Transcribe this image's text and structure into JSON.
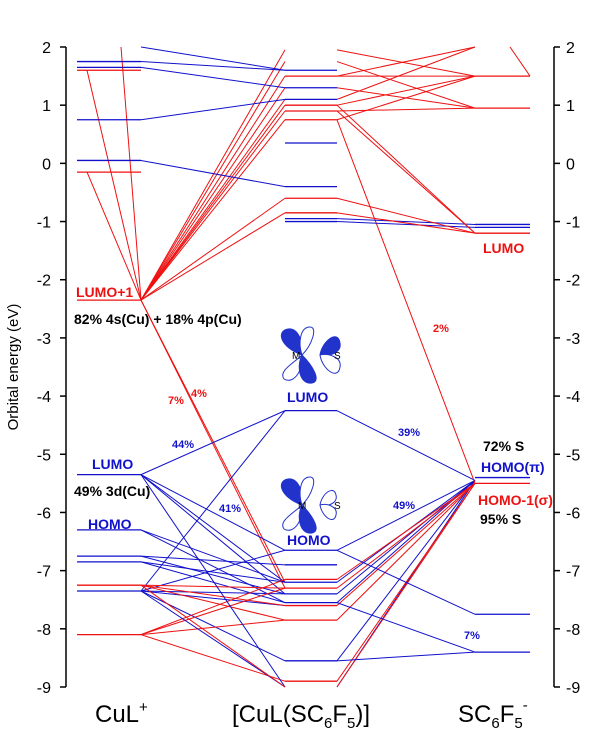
{
  "chart_data": {
    "type": "line",
    "title": "",
    "ylabel": "Orbital energy (eV)",
    "ylim": [
      -9,
      2
    ],
    "y_ticks": [
      2,
      1,
      0,
      -1,
      -2,
      -3,
      -4,
      -5,
      -6,
      -7,
      -8,
      -9
    ],
    "x_categories": [
      "CuL⁺",
      "[CuL(SC₆F₅)]",
      "SC₆F₅⁻"
    ],
    "x_category_labels": [
      {
        "main": "CuL",
        "sup": "+"
      },
      {
        "main": "[CuL(SC",
        "sub": "6",
        "mid": "F",
        "sub2": "5",
        "tail": ")]"
      },
      {
        "main": "SC",
        "sub": "6",
        "mid": "F",
        "sub2": "5",
        "sup": "-"
      }
    ],
    "colors": {
      "red": "#ee1111",
      "blue": "#1111cc",
      "text": "#000000"
    },
    "levels": {
      "CuL": [
        {
          "e": 1.75,
          "c": "blue"
        },
        {
          "e": 1.65,
          "c": "blue"
        },
        {
          "e": 1.6,
          "c": "red"
        },
        {
          "e": 0.75,
          "c": "blue"
        },
        {
          "e": 0.05,
          "c": "blue"
        },
        {
          "e": -0.15,
          "c": "red"
        },
        {
          "e": -2.35,
          "c": "red"
        },
        {
          "e": -5.35,
          "c": "blue"
        },
        {
          "e": -6.3,
          "c": "blue"
        },
        {
          "e": -6.75,
          "c": "blue"
        },
        {
          "e": -6.85,
          "c": "blue"
        },
        {
          "e": -7.25,
          "c": "red"
        },
        {
          "e": -7.35,
          "c": "blue"
        },
        {
          "e": -8.1,
          "c": "red"
        }
      ],
      "Complex": [
        {
          "e": 1.6,
          "c": "blue"
        },
        {
          "e": 1.5,
          "c": "red"
        },
        {
          "e": 1.3,
          "c": "blue"
        },
        {
          "e": 1.1,
          "c": "blue"
        },
        {
          "e": 1.0,
          "c": "red"
        },
        {
          "e": 0.9,
          "c": "red"
        },
        {
          "e": 0.75,
          "c": "red"
        },
        {
          "e": 0.35,
          "c": "blue"
        },
        {
          "e": -0.4,
          "c": "blue"
        },
        {
          "e": -0.6,
          "c": "red"
        },
        {
          "e": -0.85,
          "c": "red"
        },
        {
          "e": -0.95,
          "c": "blue"
        },
        {
          "e": -1.0,
          "c": "blue"
        },
        {
          "e": -4.25,
          "c": "blue"
        },
        {
          "e": -6.65,
          "c": "blue"
        },
        {
          "e": -6.9,
          "c": "blue"
        },
        {
          "e": -7.15,
          "c": "red"
        },
        {
          "e": -7.2,
          "c": "blue"
        },
        {
          "e": -7.3,
          "c": "red"
        },
        {
          "e": -7.4,
          "c": "blue"
        },
        {
          "e": -7.55,
          "c": "blue"
        },
        {
          "e": -7.6,
          "c": "red"
        },
        {
          "e": -7.85,
          "c": "red"
        },
        {
          "e": -8.55,
          "c": "blue"
        },
        {
          "e": -8.9,
          "c": "red"
        }
      ],
      "SC6F5": [
        {
          "e": 1.5,
          "c": "red"
        },
        {
          "e": 0.95,
          "c": "red"
        },
        {
          "e": -1.05,
          "c": "blue"
        },
        {
          "e": -1.1,
          "c": "blue"
        },
        {
          "e": -1.2,
          "c": "red"
        },
        {
          "e": -5.4,
          "c": "blue"
        },
        {
          "e": -5.5,
          "c": "red"
        },
        {
          "e": -7.75,
          "c": "blue"
        },
        {
          "e": -8.4,
          "c": "blue"
        }
      ]
    },
    "correlations": [
      {
        "from": "CuL",
        "e1": -2.35,
        "to": "Complex",
        "e2": 1.95,
        "c": "red"
      },
      {
        "from": "CuL",
        "e1": -2.35,
        "to": "Complex",
        "e2": 1.75,
        "c": "red"
      },
      {
        "from": "CuL",
        "e1": -2.35,
        "to": "Complex",
        "e2": 1.5,
        "c": "red"
      },
      {
        "from": "CuL",
        "e1": -2.35,
        "to": "Complex",
        "e2": 1.3,
        "c": "red"
      },
      {
        "from": "CuL",
        "e1": -2.35,
        "to": "Complex",
        "e2": 1.1,
        "c": "red"
      },
      {
        "from": "CuL",
        "e1": -2.35,
        "to": "Complex",
        "e2": 1.0,
        "c": "red"
      },
      {
        "from": "CuL",
        "e1": -2.35,
        "to": "Complex",
        "e2": 0.9,
        "c": "red"
      },
      {
        "from": "CuL",
        "e1": -2.35,
        "to": "Complex",
        "e2": 0.75,
        "c": "red"
      },
      {
        "from": "CuL",
        "e1": -2.35,
        "to": "Complex",
        "e2": -0.6,
        "c": "red"
      },
      {
        "from": "CuL",
        "e1": -2.35,
        "to": "Complex",
        "e2": -0.85,
        "c": "red"
      },
      {
        "from": "CuL",
        "e1": -2.35,
        "to": "Complex",
        "e2": -7.2,
        "c": "red"
      },
      {
        "from": "CuL",
        "e1": -2.35,
        "to": "Complex",
        "e2": -7.3,
        "c": "red"
      },
      {
        "from": "CuL",
        "e1": -2.35,
        "to": "CuL",
        "e2": 2.0,
        "c": "red",
        "fan": [
          1.6,
          -0.15
        ]
      },
      {
        "from": "CuL",
        "e1": 1.75,
        "to": "Complex",
        "e2": 1.6,
        "c": "blue"
      },
      {
        "from": "CuL",
        "e1": 1.65,
        "to": "Complex",
        "e2": 1.3,
        "c": "blue"
      },
      {
        "from": "CuL",
        "e1": 0.75,
        "to": "Complex",
        "e2": 1.1,
        "c": "blue"
      },
      {
        "from": "CuL",
        "e1": 0.05,
        "to": "Complex",
        "e2": -0.4,
        "c": "blue"
      },
      {
        "from": "CuL",
        "e1": 2.0,
        "to": "Complex",
        "e2": 1.6,
        "c": "blue"
      },
      {
        "from": "CuL",
        "e1": -5.35,
        "to": "Complex",
        "e2": -4.25,
        "c": "blue"
      },
      {
        "from": "CuL",
        "e1": -5.35,
        "to": "Complex",
        "e2": -6.65,
        "c": "blue"
      },
      {
        "from": "CuL",
        "e1": -5.35,
        "to": "Complex",
        "e2": -7.2,
        "c": "blue"
      },
      {
        "from": "CuL",
        "e1": -5.35,
        "to": "Complex",
        "e2": -7.4,
        "c": "blue"
      },
      {
        "from": "CuL",
        "e1": -6.3,
        "to": "Complex",
        "e2": -7.2,
        "c": "blue"
      },
      {
        "from": "CuL",
        "e1": -6.3,
        "to": "Complex",
        "e2": -7.55,
        "c": "blue"
      },
      {
        "from": "CuL",
        "e1": -6.75,
        "to": "Complex",
        "e2": -6.9,
        "c": "blue"
      },
      {
        "from": "CuL",
        "e1": -6.75,
        "to": "Complex",
        "e2": -7.4,
        "c": "blue"
      },
      {
        "from": "CuL",
        "e1": -6.85,
        "to": "Complex",
        "e2": -7.55,
        "c": "blue"
      },
      {
        "from": "CuL",
        "e1": -6.85,
        "to": "Complex",
        "e2": -7.2,
        "c": "blue"
      },
      {
        "from": "CuL",
        "e1": -7.35,
        "to": "Complex",
        "e2": -7.4,
        "c": "blue"
      },
      {
        "from": "CuL",
        "e1": -7.35,
        "to": "Complex",
        "e2": -7.6,
        "c": "blue"
      },
      {
        "from": "CuL",
        "e1": -7.35,
        "to": "Complex",
        "e2": -8.55,
        "c": "blue"
      },
      {
        "from": "CuL",
        "e1": -7.35,
        "to": "Complex",
        "e2": -4.25,
        "c": "blue"
      },
      {
        "from": "CuL",
        "e1": -7.35,
        "to": "Complex",
        "e2": -6.65,
        "c": "blue"
      },
      {
        "from": "CuL",
        "e1": -7.25,
        "to": "Complex",
        "e2": -7.3,
        "c": "red"
      },
      {
        "from": "CuL",
        "e1": -7.25,
        "to": "Complex",
        "e2": -7.6,
        "c": "red"
      },
      {
        "from": "CuL",
        "e1": -7.25,
        "to": "Complex",
        "e2": -7.85,
        "c": "red"
      },
      {
        "from": "CuL",
        "e1": -8.1,
        "to": "Complex",
        "e2": -7.3,
        "c": "red"
      },
      {
        "from": "CuL",
        "e1": -8.1,
        "to": "Complex",
        "e2": -7.85,
        "c": "red"
      },
      {
        "from": "CuL",
        "e1": -8.1,
        "to": "Complex",
        "e2": -8.9,
        "c": "red"
      },
      {
        "from": "CuL",
        "e1": -8.1,
        "to": "Complex",
        "e2": -7.15,
        "c": "red"
      },
      {
        "from": "CuL",
        "e1": -7.35,
        "to": "Complex",
        "e2": -9.0,
        "c": "blue"
      },
      {
        "from": "CuL",
        "e1": -5.35,
        "to": "Complex",
        "e2": -9.0,
        "c": "blue"
      },
      {
        "from": "CuL",
        "e1": -7.25,
        "to": "Complex",
        "e2": -9.0,
        "c": "red"
      },
      {
        "from": "SC6F5",
        "e1": -5.45,
        "to": "Complex",
        "e2": -4.25,
        "c": "blue"
      },
      {
        "from": "SC6F5",
        "e1": -5.45,
        "to": "Complex",
        "e2": -6.65,
        "c": "blue"
      },
      {
        "from": "SC6F5",
        "e1": -5.45,
        "to": "Complex",
        "e2": -7.2,
        "c": "blue"
      },
      {
        "from": "SC6F5",
        "e1": -5.45,
        "to": "Complex",
        "e2": -7.55,
        "c": "blue"
      },
      {
        "from": "SC6F5",
        "e1": -5.45,
        "to": "Complex",
        "e2": -7.4,
        "c": "blue"
      },
      {
        "from": "SC6F5",
        "e1": -5.45,
        "to": "Complex",
        "e2": -8.55,
        "c": "blue"
      },
      {
        "from": "SC6F5",
        "e1": -5.45,
        "to": "Complex",
        "e2": -9.0,
        "c": "blue"
      },
      {
        "from": "SC6F5",
        "e1": -5.5,
        "to": "Complex",
        "e2": 0.75,
        "c": "red"
      },
      {
        "from": "SC6F5",
        "e1": -5.5,
        "to": "Complex",
        "e2": -7.15,
        "c": "red"
      },
      {
        "from": "SC6F5",
        "e1": -5.5,
        "to": "Complex",
        "e2": -7.3,
        "c": "red"
      },
      {
        "from": "SC6F5",
        "e1": -5.5,
        "to": "Complex",
        "e2": -7.6,
        "c": "red"
      },
      {
        "from": "SC6F5",
        "e1": -5.5,
        "to": "Complex",
        "e2": -7.85,
        "c": "red"
      },
      {
        "from": "SC6F5",
        "e1": -5.5,
        "to": "Complex",
        "e2": -8.9,
        "c": "red"
      },
      {
        "from": "SC6F5",
        "e1": -5.5,
        "to": "Complex",
        "e2": -9.0,
        "c": "red"
      },
      {
        "from": "SC6F5",
        "e1": -7.75,
        "to": "Complex",
        "e2": -6.65,
        "c": "blue"
      },
      {
        "from": "SC6F5",
        "e1": -8.4,
        "to": "Complex",
        "e2": -8.55,
        "c": "blue"
      },
      {
        "from": "SC6F5",
        "e1": -8.4,
        "to": "Complex",
        "e2": -7.55,
        "c": "blue"
      },
      {
        "from": "SC6F5",
        "e1": -1.05,
        "to": "Complex",
        "e2": -0.95,
        "c": "blue"
      },
      {
        "from": "SC6F5",
        "e1": -1.1,
        "to": "Complex",
        "e2": -1.0,
        "c": "blue"
      },
      {
        "from": "SC6F5",
        "e1": -1.2,
        "to": "Complex",
        "e2": 0.9,
        "c": "red"
      },
      {
        "from": "SC6F5",
        "e1": -1.2,
        "to": "Complex",
        "e2": 1.0,
        "c": "red"
      },
      {
        "from": "SC6F5",
        "e1": -1.2,
        "to": "Complex",
        "e2": -0.6,
        "c": "red"
      },
      {
        "from": "SC6F5",
        "e1": -1.2,
        "to": "Complex",
        "e2": -0.85,
        "c": "red"
      },
      {
        "from": "SC6F5",
        "e1": 1.5,
        "to": "Complex",
        "e2": 1.5,
        "c": "red"
      },
      {
        "from": "SC6F5",
        "e1": 1.5,
        "to": "Complex",
        "e2": 1.0,
        "c": "red"
      },
      {
        "from": "SC6F5",
        "e1": 1.5,
        "to": "Complex",
        "e2": 0.75,
        "c": "red"
      },
      {
        "from": "SC6F5",
        "e1": 1.5,
        "to": "Complex",
        "e2": 1.95,
        "c": "red"
      },
      {
        "from": "SC6F5",
        "e1": 0.95,
        "to": "Complex",
        "e2": 1.3,
        "c": "red"
      },
      {
        "from": "SC6F5",
        "e1": 0.95,
        "to": "Complex",
        "e2": 0.9,
        "c": "red"
      },
      {
        "from": "SC6F5",
        "e1": 0.95,
        "to": "Complex",
        "e2": 1.75,
        "c": "red"
      },
      {
        "from": "SC6F5",
        "e1": 2.0,
        "to": "Complex",
        "e2": 1.1,
        "c": "red"
      },
      {
        "from": "SC6F5",
        "e1": 2.0,
        "to": "Complex",
        "e2": 1.5,
        "c": "red"
      },
      {
        "from": "SC6F5",
        "e1": 1.5,
        "to": "SC6F5",
        "e2": 2.0,
        "c": "red"
      }
    ],
    "annotations": {
      "cul_lumo1": "LUMO+1",
      "cul_lumo1_comp": "82% 4s(Cu) + 18% 4p(Cu)",
      "cul_lumo": "LUMO",
      "cul_lumo_comp": "49% 3d(Cu)",
      "cul_homo": "HOMO",
      "cx_lumo": "LUMO",
      "cx_homo": "HOMO",
      "sc_lumo": "LUMO",
      "sc_homo_comp": "72% S",
      "sc_homo": "HOMO(π)",
      "sc_homo1": "HOMO-1(σ)",
      "sc_homo1_comp": "95% S",
      "orbital_m": "M",
      "orbital_s": "S",
      "p_44": "44%",
      "p_41": "41%",
      "p_39": "39%",
      "p_49": "49%",
      "p_7a": "7%",
      "p_4": "4%",
      "p_2": "2%",
      "p_7b": "7%"
    }
  }
}
